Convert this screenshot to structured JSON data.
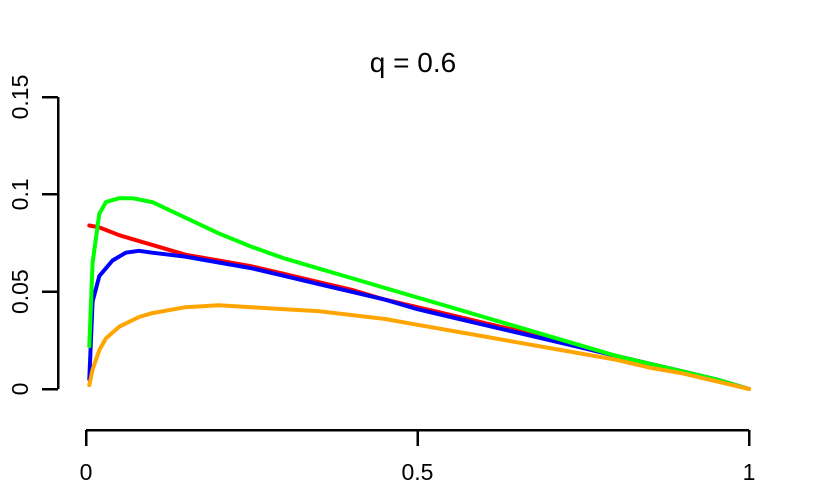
{
  "chart_data": {
    "type": "line",
    "title": "q = 0.6",
    "xlabel": "",
    "ylabel": "",
    "xlim": [
      0,
      1
    ],
    "ylim": [
      0,
      0.15
    ],
    "x_ticks": [
      {
        "value": 0,
        "label": "0"
      },
      {
        "value": 0.5,
        "label": "0.5"
      },
      {
        "value": 1,
        "label": "1"
      }
    ],
    "y_ticks": [
      {
        "value": 0,
        "label": "0"
      },
      {
        "value": 0.05,
        "label": "0.05"
      },
      {
        "value": 0.1,
        "label": "0.1"
      },
      {
        "value": 0.15,
        "label": "0.15"
      }
    ],
    "grid": false,
    "legend": "none",
    "series": [
      {
        "color": "#ff0000",
        "x": [
          0.005,
          0.02,
          0.05,
          0.08,
          0.1,
          0.15,
          0.2,
          0.25,
          0.3,
          0.35,
          0.4,
          0.45,
          0.5,
          0.55,
          0.6,
          0.65,
          0.7,
          0.75,
          0.8,
          0.85,
          0.9,
          0.95,
          1.0
        ],
        "y": [
          0.084,
          0.083,
          0.079,
          0.076,
          0.074,
          0.069,
          0.066,
          0.063,
          0.059,
          0.055,
          0.051,
          0.046,
          0.042,
          0.038,
          0.034,
          0.03,
          0.026,
          0.021,
          0.017,
          0.013,
          0.009,
          0.005,
          0.0
        ]
      },
      {
        "color": "#0000ff",
        "x": [
          0.005,
          0.01,
          0.02,
          0.04,
          0.06,
          0.08,
          0.1,
          0.15,
          0.2,
          0.25,
          0.3,
          0.35,
          0.4,
          0.45,
          0.5,
          0.55,
          0.6,
          0.65,
          0.7,
          0.75,
          0.8,
          0.85,
          0.9,
          0.95,
          1.0
        ],
        "y": [
          0.005,
          0.045,
          0.058,
          0.066,
          0.07,
          0.071,
          0.07,
          0.068,
          0.065,
          0.062,
          0.058,
          0.054,
          0.05,
          0.046,
          0.041,
          0.037,
          0.033,
          0.029,
          0.025,
          0.021,
          0.017,
          0.013,
          0.009,
          0.005,
          0.0
        ]
      },
      {
        "color": "#00ff00",
        "x": [
          0.005,
          0.01,
          0.02,
          0.03,
          0.05,
          0.07,
          0.1,
          0.15,
          0.2,
          0.25,
          0.3,
          0.35,
          0.4,
          0.45,
          0.5,
          0.55,
          0.6,
          0.65,
          0.7,
          0.75,
          0.8,
          0.85,
          0.9,
          0.95,
          1.0
        ],
        "y": [
          0.022,
          0.065,
          0.09,
          0.096,
          0.098,
          0.098,
          0.096,
          0.088,
          0.08,
          0.073,
          0.067,
          0.062,
          0.057,
          0.052,
          0.047,
          0.042,
          0.037,
          0.032,
          0.027,
          0.022,
          0.017,
          0.013,
          0.009,
          0.005,
          0.0
        ]
      },
      {
        "color": "#ffa500",
        "x": [
          0.005,
          0.01,
          0.02,
          0.03,
          0.05,
          0.08,
          0.1,
          0.15,
          0.2,
          0.25,
          0.3,
          0.35,
          0.4,
          0.45,
          0.5,
          0.55,
          0.6,
          0.65,
          0.7,
          0.75,
          0.8,
          0.85,
          0.9,
          0.95,
          1.0
        ],
        "y": [
          0.002,
          0.01,
          0.02,
          0.026,
          0.032,
          0.037,
          0.039,
          0.042,
          0.043,
          0.042,
          0.041,
          0.04,
          0.038,
          0.036,
          0.033,
          0.03,
          0.027,
          0.024,
          0.021,
          0.018,
          0.015,
          0.011,
          0.008,
          0.004,
          0.0
        ]
      }
    ]
  }
}
